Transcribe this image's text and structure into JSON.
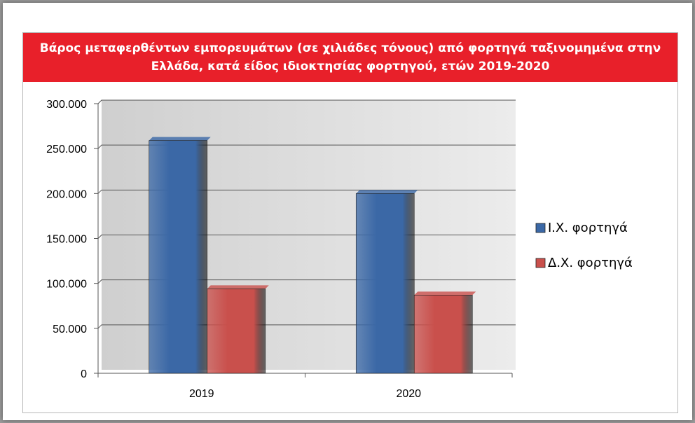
{
  "chart_data": {
    "type": "bar",
    "title": "Βάρος μεταφερθέντων εμπορευμάτων (σε χιλιάδες τόνους) από φορτηγά ταξινομημένα στην Ελλάδα, κατά είδος ιδιοκτησίας φορτηγού, ετών 2019-2020",
    "categories": [
      "2019",
      "2020"
    ],
    "series": [
      {
        "name": "Ι.Χ. φορτηγά",
        "values": [
          259000,
          200000
        ],
        "color": "#3b68a6"
      },
      {
        "name": "Δ.Χ. φορτηγά",
        "values": [
          94000,
          87000
        ],
        "color": "#c9504c"
      }
    ],
    "ylim": [
      0,
      300000
    ],
    "yticks": [
      0,
      50000,
      100000,
      150000,
      200000,
      250000,
      300000
    ],
    "ytick_labels": [
      "0",
      "50.000",
      "100.000",
      "150.000",
      "200.000",
      "250.000",
      "300.000"
    ],
    "xlabel": "",
    "ylabel": "",
    "grid": true,
    "legend_position": "right"
  }
}
